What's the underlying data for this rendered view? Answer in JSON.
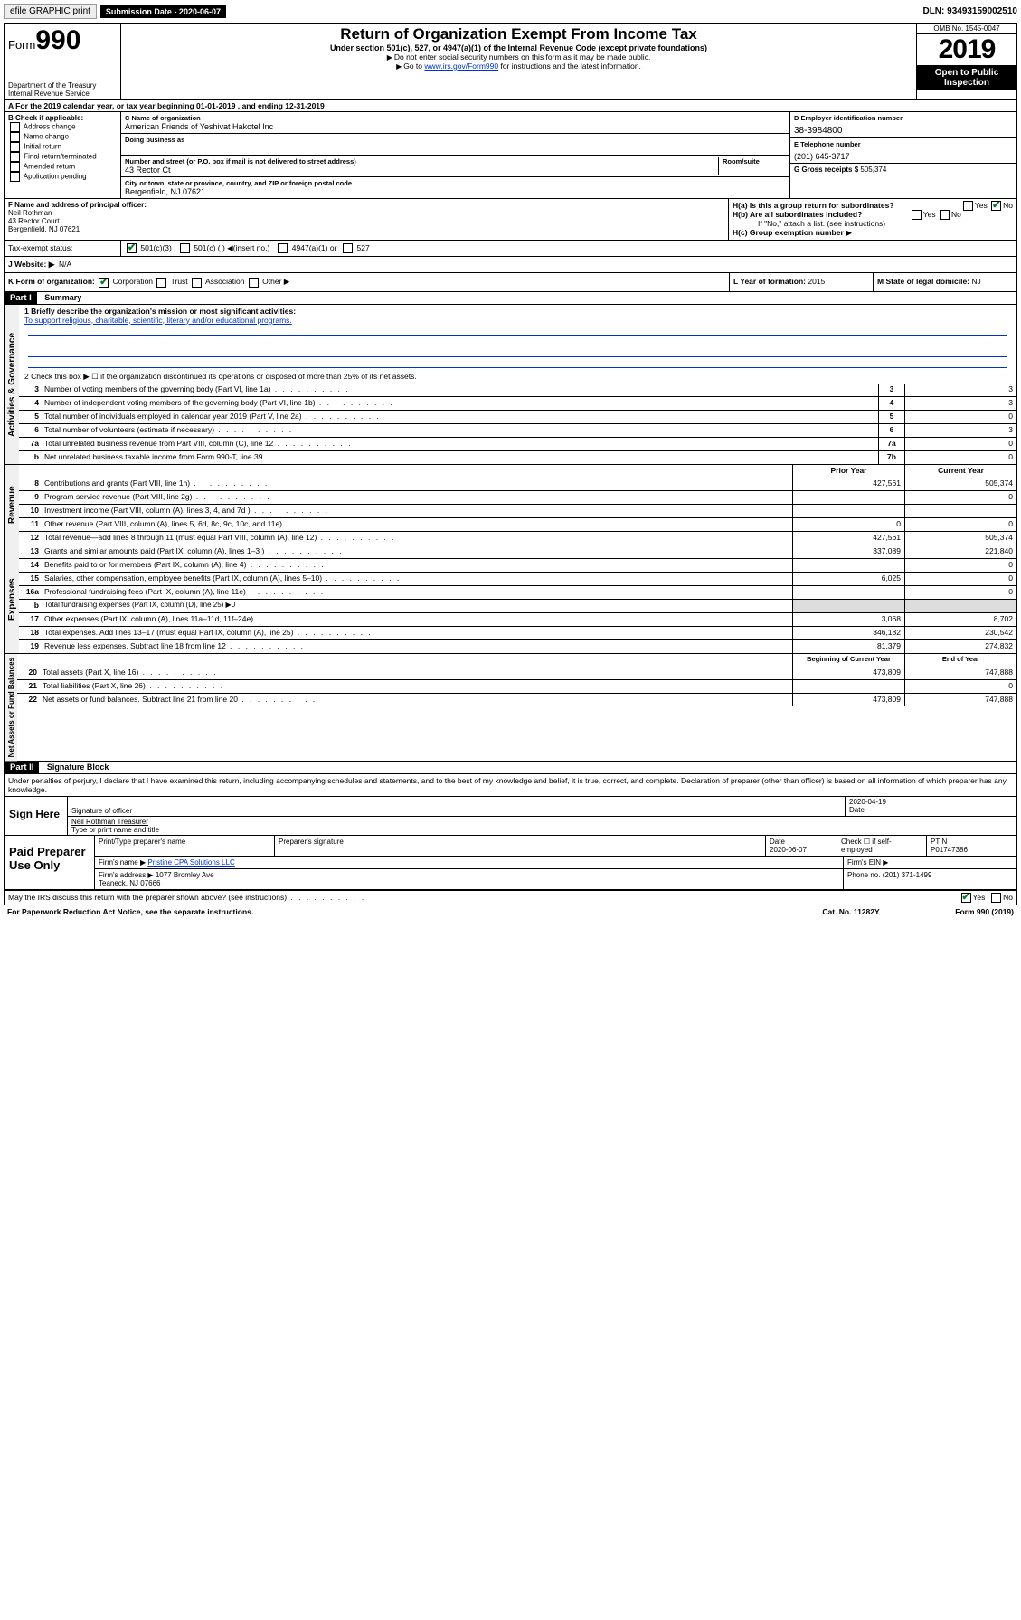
{
  "topbar": {
    "efile": "efile GRAPHIC print",
    "subdate_label": "Submission Date - 2020-06-07",
    "dln": "DLN: 93493159002510"
  },
  "header": {
    "form_label": "Form",
    "form_no": "990",
    "dept": "Department of the Treasury\nInternal Revenue Service",
    "title": "Return of Organization Exempt From Income Tax",
    "sub": "Under section 501(c), 527, or 4947(a)(1) of the Internal Revenue Code (except private foundations)",
    "note1": "Do not enter social security numbers on this form as it may be made public.",
    "note2_a": "Go to ",
    "note2_link": "www.irs.gov/Form990",
    "note2_b": " for instructions and the latest information.",
    "omb": "OMB No. 1545-0047",
    "year": "2019",
    "openpub": "Open to Public Inspection"
  },
  "period": "A For the 2019 calendar year, or tax year beginning 01-01-2019   , and ending 12-31-2019",
  "boxB": {
    "label": "B Check if applicable:",
    "items": [
      "Address change",
      "Name change",
      "Initial return",
      "Final return/terminated",
      "Amended return",
      "Application pending"
    ]
  },
  "boxC": {
    "name_lab": "C Name of organization",
    "name": "American Friends of Yeshivat Hakotel Inc",
    "dba_lab": "Doing business as",
    "addr_lab": "Number and street (or P.O. box if mail is not delivered to street address)",
    "room_lab": "Room/suite",
    "addr": "43 Rector Ct",
    "city_lab": "City or town, state or province, country, and ZIP or foreign postal code",
    "city": "Bergenfield, NJ  07621"
  },
  "boxD": {
    "lab": "D Employer identification number",
    "val": "38-3984800"
  },
  "boxE": {
    "lab": "E Telephone number",
    "val": "(201) 645-3717"
  },
  "boxG": {
    "lab": "G Gross receipts $",
    "val": "505,374"
  },
  "boxF": {
    "lab": "F Name and address of principal officer:",
    "name": "Neil Rothman",
    "addr1": "43 Rector Court",
    "addr2": "Bergenfield, NJ  07621"
  },
  "boxH": {
    "a": "H(a)  Is this a group return for subordinates?",
    "b": "H(b)  Are all subordinates included?",
    "b_note": "If \"No,\" attach a list. (see instructions)",
    "c": "H(c)  Group exemption number ▶",
    "yes": "Yes",
    "no": "No"
  },
  "taxexempt": {
    "lab": "Tax-exempt status:",
    "c3": "501(c)(3)",
    "c": "501(c) (  ) ◀(insert no.)",
    "a1": "4947(a)(1) or",
    "s527": "527"
  },
  "website": {
    "lab": "J   Website: ▶",
    "val": "N/A"
  },
  "boxK": {
    "lab": "K Form of organization:",
    "corp": "Corporation",
    "trust": "Trust",
    "assoc": "Association",
    "other": "Other ▶"
  },
  "boxL": {
    "lab": "L Year of formation:",
    "val": "2015"
  },
  "boxM": {
    "lab": "M State of legal domicile:",
    "val": "NJ"
  },
  "part1": {
    "hdr": "Part I",
    "title": "Summary",
    "q1_lab": "1  Briefly describe the organization's mission or most significant activities:",
    "q1_val": "To support religious, charitable, scientific, literary and/or educational programs.",
    "q2": "2   Check this box ▶ ☐  if the organization discontinued its operations or disposed of more than 25% of its net assets.",
    "lines_num": [
      {
        "n": "3",
        "t": "Number of voting members of the governing body (Part VI, line 1a)",
        "c": "3",
        "v": "3"
      },
      {
        "n": "4",
        "t": "Number of independent voting members of the governing body (Part VI, line 1b)",
        "c": "4",
        "v": "3"
      },
      {
        "n": "5",
        "t": "Total number of individuals employed in calendar year 2019 (Part V, line 2a)",
        "c": "5",
        "v": "0"
      },
      {
        "n": "6",
        "t": "Total number of volunteers (estimate if necessary)",
        "c": "6",
        "v": "3"
      },
      {
        "n": "7a",
        "t": "Total unrelated business revenue from Part VIII, column (C), line 12",
        "c": "7a",
        "v": "0"
      },
      {
        "n": "b",
        "t": "Net unrelated business taxable income from Form 990-T, line 39",
        "c": "7b",
        "v": "0"
      }
    ],
    "hdr_prior": "Prior Year",
    "hdr_curr": "Current Year",
    "rev": [
      {
        "n": "8",
        "t": "Contributions and grants (Part VIII, line 1h)",
        "p": "427,561",
        "c": "505,374"
      },
      {
        "n": "9",
        "t": "Program service revenue (Part VIII, line 2g)",
        "p": "",
        "c": "0"
      },
      {
        "n": "10",
        "t": "Investment income (Part VIII, column (A), lines 3, 4, and 7d )",
        "p": "",
        "c": ""
      },
      {
        "n": "11",
        "t": "Other revenue (Part VIII, column (A), lines 5, 6d, 8c, 9c, 10c, and 11e)",
        "p": "0",
        "c": "0"
      },
      {
        "n": "12",
        "t": "Total revenue—add lines 8 through 11 (must equal Part VIII, column (A), line 12)",
        "p": "427,561",
        "c": "505,374"
      }
    ],
    "exp": [
      {
        "n": "13",
        "t": "Grants and similar amounts paid (Part IX, column (A), lines 1–3 )",
        "p": "337,089",
        "c": "221,840"
      },
      {
        "n": "14",
        "t": "Benefits paid to or for members (Part IX, column (A), line 4)",
        "p": "",
        "c": "0"
      },
      {
        "n": "15",
        "t": "Salaries, other compensation, employee benefits (Part IX, column (A), lines 5–10)",
        "p": "6,025",
        "c": "0"
      },
      {
        "n": "16a",
        "t": "Professional fundraising fees (Part IX, column (A), line 11e)",
        "p": "",
        "c": "0"
      },
      {
        "n": "b",
        "t": "Total fundraising expenses (Part IX, column (D), line 25) ▶0",
        "p": "—",
        "c": "—"
      },
      {
        "n": "17",
        "t": "Other expenses (Part IX, column (A), lines 11a–11d, 11f–24e)",
        "p": "3,068",
        "c": "8,702"
      },
      {
        "n": "18",
        "t": "Total expenses. Add lines 13–17 (must equal Part IX, column (A), line 25)",
        "p": "346,182",
        "c": "230,542"
      },
      {
        "n": "19",
        "t": "Revenue less expenses. Subtract line 18 from line 12",
        "p": "81,379",
        "c": "274,832"
      }
    ],
    "hdr_boy": "Beginning of Current Year",
    "hdr_eoy": "End of Year",
    "net": [
      {
        "n": "20",
        "t": "Total assets (Part X, line 16)",
        "p": "473,809",
        "c": "747,888"
      },
      {
        "n": "21",
        "t": "Total liabilities (Part X, line 26)",
        "p": "",
        "c": "0"
      },
      {
        "n": "22",
        "t": "Net assets or fund balances. Subtract line 21 from line 20",
        "p": "473,809",
        "c": "747,888"
      }
    ],
    "vtab_gov": "Activities & Governance",
    "vtab_rev": "Revenue",
    "vtab_exp": "Expenses",
    "vtab_net": "Net Assets or Fund Balances"
  },
  "part2": {
    "hdr": "Part II",
    "title": "Signature Block",
    "jurat": "Under penalties of perjury, I declare that I have examined this return, including accompanying schedules and statements, and to the best of my knowledge and belief, it is true, correct, and complete. Declaration of preparer (other than officer) is based on all information of which preparer has any knowledge.",
    "sign_here": "Sign Here",
    "sig_lab": "Signature of officer",
    "date_lab": "Date",
    "date": "2020-04-19",
    "name": "Neil Rothman  Treasurer",
    "name_lab": "Type or print name and title",
    "paid": "Paid Preparer Use Only",
    "prep_name_lab": "Print/Type preparer's name",
    "prep_sig_lab": "Preparer's signature",
    "prep_date_lab": "Date",
    "prep_date": "2020-06-07",
    "self_lab": "Check ☐ if self-employed",
    "ptin_lab": "PTIN",
    "ptin": "P01747386",
    "firm_name_lab": "Firm's name   ▶",
    "firm_name": "Pristine CPA Solutions LLC",
    "firm_ein_lab": "Firm's EIN ▶",
    "firm_addr_lab": "Firm's address ▶",
    "firm_addr": "1077 Bromley Ave\nTeaneck, NJ  07666",
    "phone_lab": "Phone no.",
    "phone": "(201) 371-1499",
    "discuss": "May the IRS discuss this return with the preparer shown above? (see instructions)",
    "yes": "Yes",
    "no": "No"
  },
  "footer": {
    "pra": "For Paperwork Reduction Act Notice, see the separate instructions.",
    "cat": "Cat. No. 11282Y",
    "form": "Form 990 (2019)"
  }
}
